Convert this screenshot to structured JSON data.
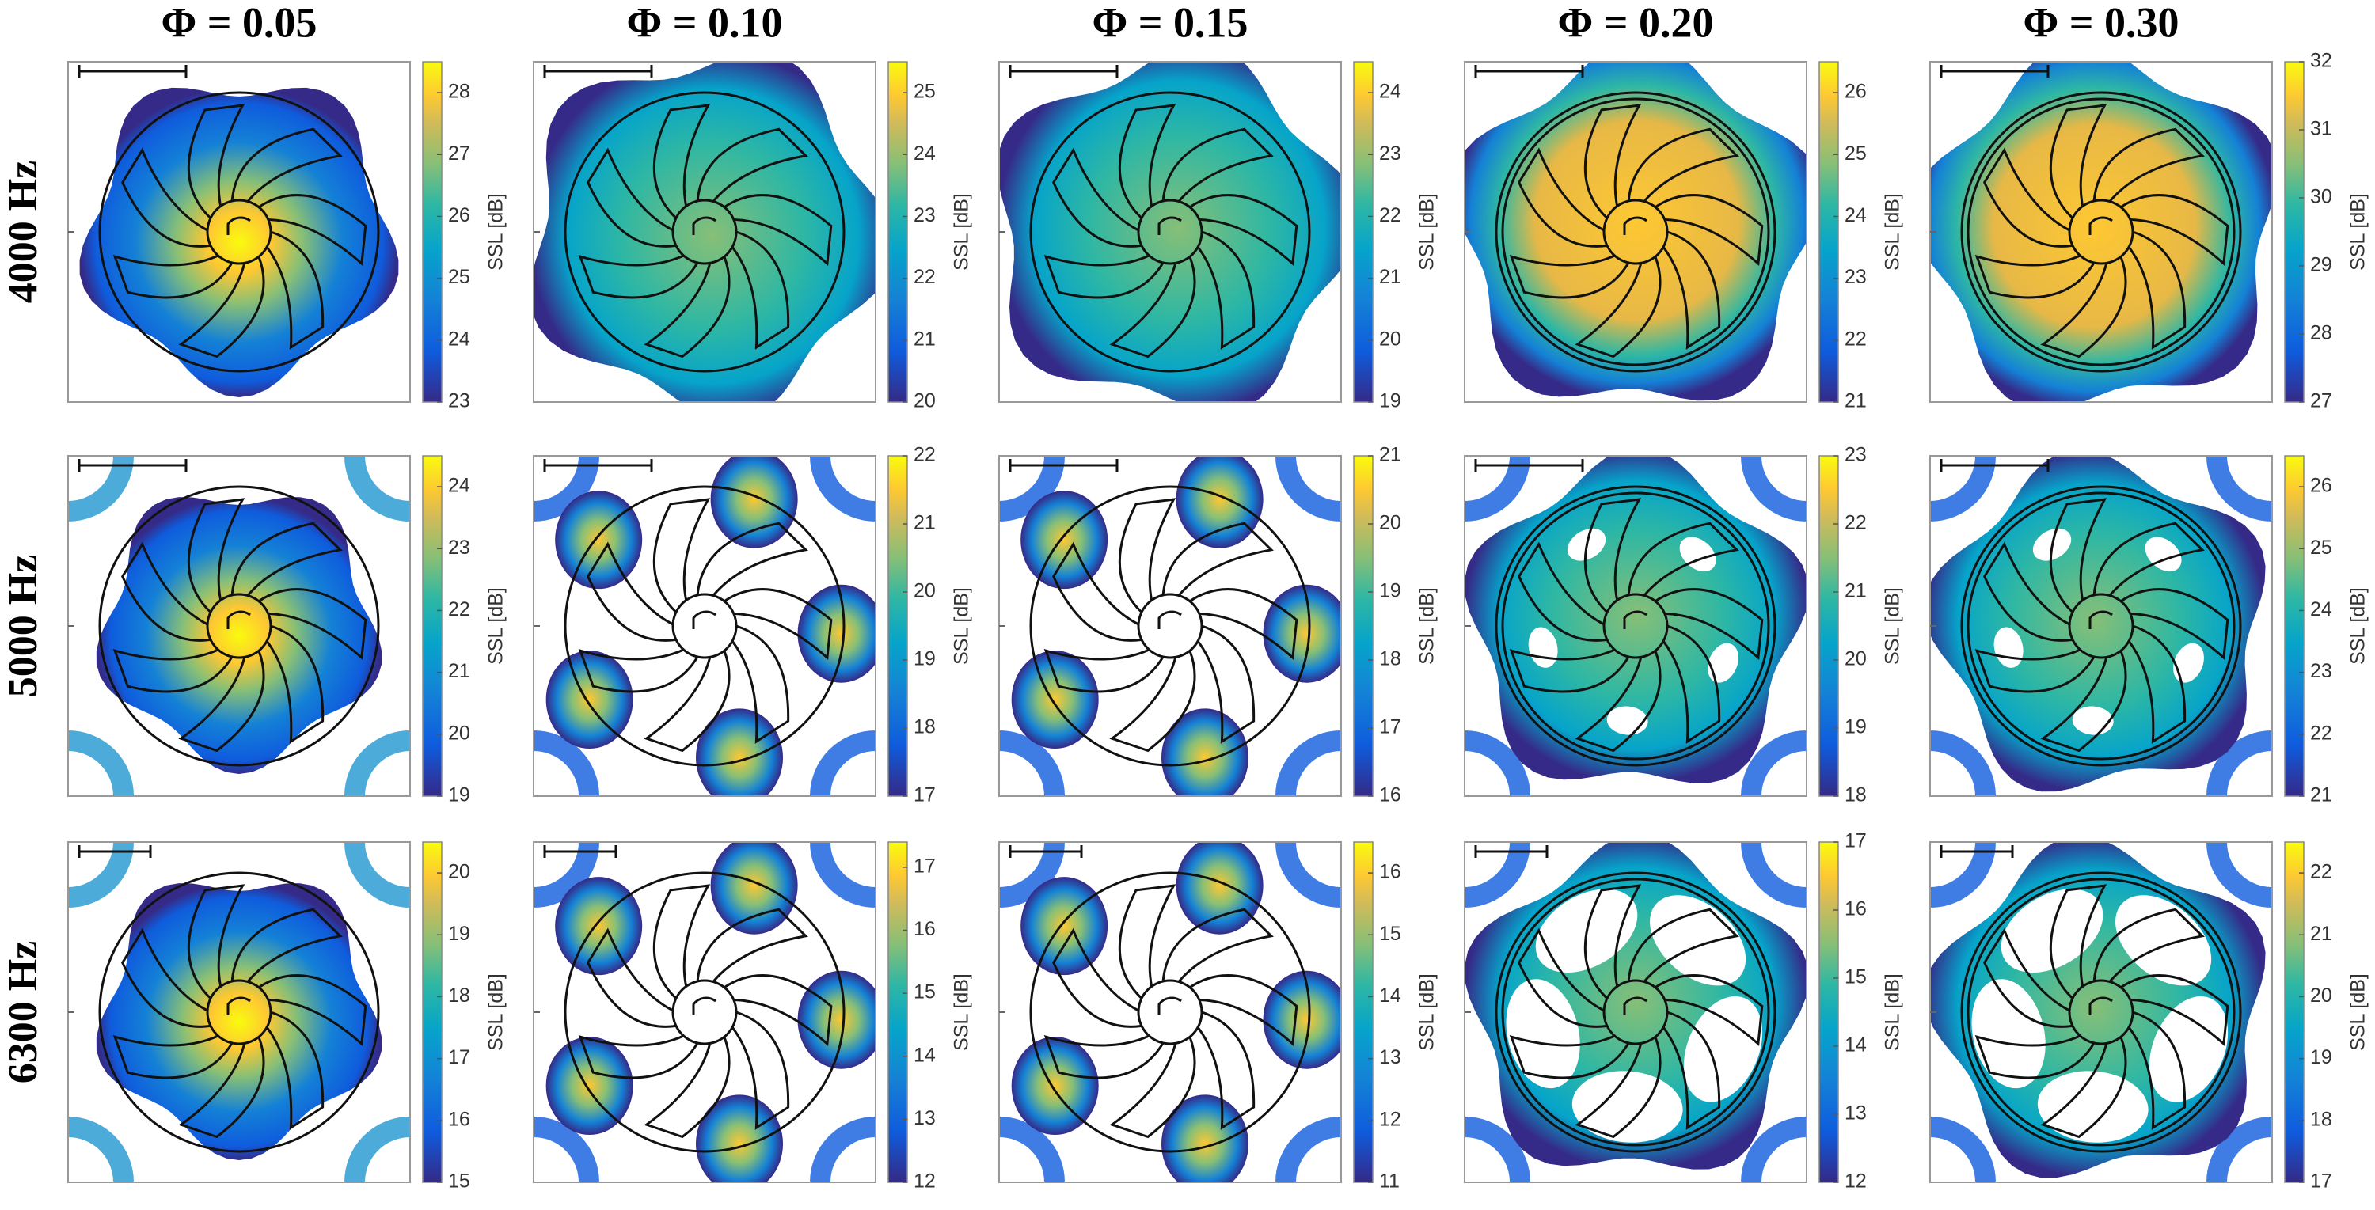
{
  "column_titles": [
    "Φ = 0.05",
    "Φ = 0.10",
    "Φ = 0.15",
    "Φ = 0.20",
    "Φ = 0.30"
  ],
  "row_labels": [
    "4000 Hz",
    "5000 Hz",
    "6300 Hz"
  ],
  "chart_data": [
    {
      "type": "contour",
      "colorbar_label": "SSL [dB]",
      "clim": [
        23,
        28.5
      ],
      "cticks": [
        23,
        24,
        25,
        26,
        27,
        28
      ]
    },
    {
      "type": "contour",
      "colorbar_label": "SSL [dB]",
      "clim": [
        20,
        25.5
      ],
      "cticks": [
        20,
        21,
        22,
        23,
        24,
        25
      ]
    },
    {
      "type": "contour",
      "colorbar_label": "SSL [dB]",
      "clim": [
        19,
        24.5
      ],
      "cticks": [
        19,
        20,
        21,
        22,
        23,
        24
      ]
    },
    {
      "type": "contour",
      "colorbar_label": "SSL [dB]",
      "clim": [
        21,
        26.5
      ],
      "cticks": [
        21,
        22,
        23,
        24,
        25,
        26
      ]
    },
    {
      "type": "contour",
      "colorbar_label": "SSL [dB]",
      "clim": [
        27,
        32
      ],
      "cticks": [
        27,
        28,
        29,
        30,
        31,
        32
      ]
    },
    {
      "type": "contour",
      "colorbar_label": "SSL [dB]",
      "clim": [
        19,
        24.5
      ],
      "cticks": [
        19,
        20,
        21,
        22,
        23,
        24
      ]
    },
    {
      "type": "contour",
      "colorbar_label": "SSL [dB]",
      "clim": [
        17,
        22
      ],
      "cticks": [
        17,
        18,
        19,
        20,
        21,
        22
      ]
    },
    {
      "type": "contour",
      "colorbar_label": "SSL [dB]",
      "clim": [
        16,
        21
      ],
      "cticks": [
        16,
        17,
        18,
        19,
        20,
        21
      ]
    },
    {
      "type": "contour",
      "colorbar_label": "SSL [dB]",
      "clim": [
        18,
        23
      ],
      "cticks": [
        18,
        19,
        20,
        21,
        22,
        23
      ]
    },
    {
      "type": "contour",
      "colorbar_label": "SSL [dB]",
      "clim": [
        21,
        26.5
      ],
      "cticks": [
        21,
        22,
        23,
        24,
        25,
        26
      ]
    },
    {
      "type": "contour",
      "colorbar_label": "SSL [dB]",
      "clim": [
        15,
        20.5
      ],
      "cticks": [
        15,
        16,
        17,
        18,
        19,
        20
      ]
    },
    {
      "type": "contour",
      "colorbar_label": "SSL [dB]",
      "clim": [
        12,
        17.4
      ],
      "cticks": [
        12,
        13,
        14,
        15,
        16,
        17
      ]
    },
    {
      "type": "contour",
      "colorbar_label": "SSL [dB]",
      "clim": [
        11,
        16.5
      ],
      "cticks": [
        11,
        12,
        13,
        14,
        15,
        16
      ]
    },
    {
      "type": "contour",
      "colorbar_label": "SSL [dB]",
      "clim": [
        12,
        17
      ],
      "cticks": [
        12,
        13,
        14,
        15,
        16,
        17
      ]
    },
    {
      "type": "contour",
      "colorbar_label": "SSL [dB]",
      "clim": [
        17,
        22.5
      ],
      "cticks": [
        17,
        18,
        19,
        20,
        21,
        22
      ]
    }
  ]
}
